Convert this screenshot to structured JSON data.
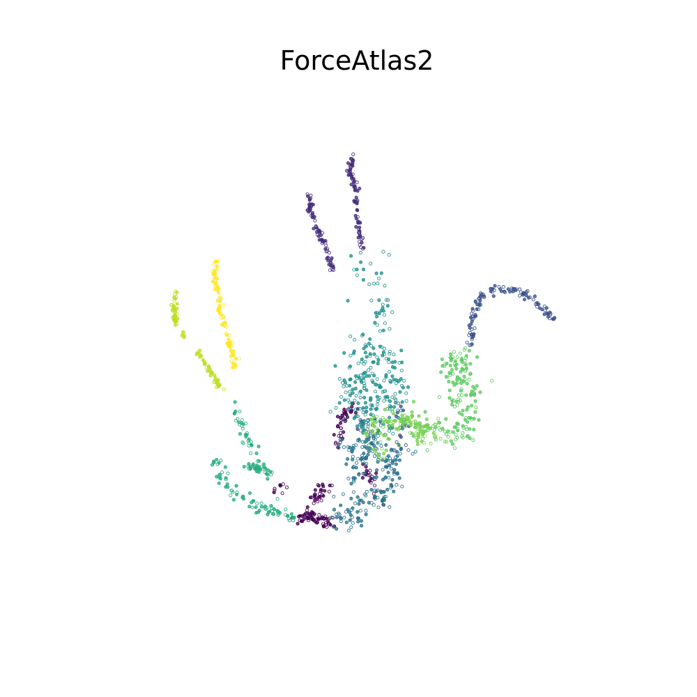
{
  "chart_data": {
    "type": "scatter",
    "title": "ForceAtlas2",
    "xlabel": "",
    "ylabel": "",
    "axes_visible": false,
    "grid": false,
    "legend": "none",
    "xlim": [
      0,
      100
    ],
    "ylim": [
      0,
      100
    ],
    "series": [
      {
        "name": "cluster-0",
        "color": "#440154",
        "jitter": 0.6,
        "segments": [
          {
            "points": [
              [
                39.5,
                16.5
              ],
              [
                41,
                17.5
              ],
              [
                43.5,
                16.5
              ],
              [
                45.5,
                16.5
              ]
            ],
            "n": 60
          },
          {
            "points": [
              [
                41,
                18.5
              ],
              [
                42.5,
                21
              ],
              [
                44,
                22.5
              ]
            ],
            "n": 30
          },
          {
            "points": [
              [
                46.5,
                30
              ],
              [
                47.5,
                36.5
              ],
              [
                48.5,
                36.5
              ],
              [
                49.5,
                38
              ]
            ],
            "n": 40
          },
          {
            "points": [
              [
                51,
                27
              ],
              [
                52.5,
                24.5
              ],
              [
                53.5,
                22.5
              ]
            ],
            "n": 20
          },
          {
            "points": [
              [
                35,
                23
              ],
              [
                35.5,
                22.5
              ]
            ],
            "n": 8
          }
        ]
      },
      {
        "name": "cluster-1",
        "color": "#472f7d",
        "jitter": 0.3,
        "segments": [
          {
            "points": [
              [
                41.5,
                77.5
              ],
              [
                41,
                75.5
              ],
              [
                42,
                72
              ],
              [
                43.5,
                69
              ],
              [
                44.5,
                66
              ],
              [
                45.5,
                63
              ]
            ],
            "n": 70
          },
          {
            "points": [
              [
                49.5,
                84.5
              ],
              [
                48.5,
                81
              ],
              [
                49.5,
                79
              ],
              [
                50,
                73
              ],
              [
                50.5,
                70
              ],
              [
                51,
                67
              ]
            ],
            "n": 80
          }
        ]
      },
      {
        "name": "cluster-2",
        "color": "#3b518b",
        "jitter": 0.4,
        "segments": [
          {
            "points": [
              [
                71,
                49
              ],
              [
                71.5,
                54
              ],
              [
                72.5,
                57
              ],
              [
                74,
                59
              ],
              [
                77,
                59.5
              ],
              [
                80,
                59
              ],
              [
                83,
                57
              ],
              [
                86.5,
                54
              ]
            ],
            "n": 110
          },
          {
            "points": [
              [
                57.5,
                38
              ],
              [
                58.5,
                34
              ],
              [
                57.5,
                29
              ],
              [
                56,
                25
              ]
            ],
            "n": 25
          },
          {
            "points": [
              [
                50,
                36
              ],
              [
                51.5,
                33
              ],
              [
                53,
                31
              ]
            ],
            "n": 15
          }
        ]
      },
      {
        "name": "cluster-3",
        "color": "#2c728e",
        "jitter": 1.4,
        "segments": [
          {
            "points": [
              [
                46.5,
                16.5
              ],
              [
                49,
                17.5
              ],
              [
                52,
                19.5
              ],
              [
                54.5,
                22
              ],
              [
                57,
                25.5
              ],
              [
                58,
                29
              ]
            ],
            "n": 110
          },
          {
            "points": [
              [
                47,
                31
              ],
              [
                50,
                30
              ],
              [
                53,
                29
              ],
              [
                56,
                28
              ]
            ],
            "n": 50
          },
          {
            "points": [
              [
                48,
                20
              ],
              [
                50,
                25
              ],
              [
                52,
                30
              ],
              [
                53,
                35
              ]
            ],
            "n": 50
          }
        ]
      },
      {
        "name": "cluster-4",
        "color": "#21918c",
        "jitter": 1.8,
        "segments": [
          {
            "points": [
              [
                49,
                45
              ],
              [
                51,
                48
              ],
              [
                53.5,
                48
              ],
              [
                56,
                47.5
              ],
              [
                57,
                44
              ],
              [
                56.5,
                40
              ],
              [
                55,
                36
              ]
            ],
            "n": 100
          },
          {
            "points": [
              [
                49,
                44
              ],
              [
                49.5,
                40
              ],
              [
                50,
                36
              ],
              [
                51,
                32
              ]
            ],
            "n": 60
          },
          {
            "points": [
              [
                52,
                44
              ],
              [
                53,
                40
              ],
              [
                54,
                36
              ],
              [
                55,
                32
              ]
            ],
            "n": 60
          },
          {
            "points": [
              [
                51.5,
                65
              ],
              [
                52,
                62
              ],
              [
                53,
                58
              ],
              [
                54,
                55
              ],
              [
                55,
                51.5
              ]
            ],
            "n": 40
          }
        ]
      },
      {
        "name": "cluster-5",
        "color": "#28ae80",
        "jitter": 0.6,
        "segments": [
          {
            "points": [
              [
                24,
                28
              ],
              [
                25,
                24.5
              ],
              [
                27,
                22
              ],
              [
                30,
                19.5
              ],
              [
                33.5,
                18.5
              ],
              [
                36.5,
                18
              ]
            ],
            "n": 70
          },
          {
            "points": [
              [
                30,
                26.5
              ],
              [
                32,
                26
              ],
              [
                34,
                25
              ]
            ],
            "n": 35
          },
          {
            "points": [
              [
                27.5,
                38
              ],
              [
                29,
                33
              ],
              [
                31,
                29
              ],
              [
                32,
                27
              ]
            ],
            "n": 35
          },
          {
            "points": [
              [
                36.5,
                17.5
              ],
              [
                38.5,
                17
              ]
            ],
            "n": 10
          }
        ]
      },
      {
        "name": "cluster-6",
        "color": "#5ec962",
        "jitter": 1.3,
        "segments": [
          {
            "points": [
              [
                67,
                43
              ],
              [
                68,
                46.5
              ],
              [
                69.5,
                44
              ],
              [
                70.5,
                40.5
              ],
              [
                70,
                36
              ],
              [
                69.5,
                31
              ]
            ],
            "n": 110
          },
          {
            "points": [
              [
                60,
                34
              ],
              [
                63,
                33.5
              ],
              [
                66,
                33
              ],
              [
                68.5,
                31.5
              ]
            ],
            "n": 40
          },
          {
            "points": [
              [
                67.5,
                41
              ],
              [
                68.5,
                39
              ]
            ],
            "n": 15
          }
        ]
      },
      {
        "name": "cluster-7",
        "color": "#7ad151",
        "jitter": 1.2,
        "segments": [
          {
            "points": [
              [
                57.5,
                36
              ],
              [
                59.5,
                34
              ],
              [
                61.5,
                33
              ],
              [
                63.5,
                33.5
              ],
              [
                65,
                33
              ]
            ],
            "n": 80
          },
          {
            "points": [
              [
                52,
                32
              ],
              [
                54,
                34
              ],
              [
                55.5,
                36
              ]
            ],
            "n": 30
          },
          {
            "points": [
              [
                54,
                28
              ],
              [
                55,
                31
              ],
              [
                56.5,
                33.5
              ]
            ],
            "n": 20
          }
        ]
      },
      {
        "name": "cluster-8",
        "color": "#bddf26",
        "jitter": 0.3,
        "segments": [
          {
            "points": [
              [
                16.5,
                59
              ],
              [
                16,
                57
              ],
              [
                16.5,
                54
              ],
              [
                16.5,
                53
              ]
            ],
            "n": 45
          },
          {
            "points": [
              [
                20.5,
                47.5
              ],
              [
                22,
                45.5
              ],
              [
                23.5,
                43
              ],
              [
                25,
                40.5
              ]
            ],
            "n": 45
          },
          {
            "points": [
              [
                17.5,
                51.5
              ],
              [
                18,
                50.5
              ]
            ],
            "n": 6
          }
        ]
      },
      {
        "name": "cluster-9",
        "color": "#fde725",
        "jitter": 0.3,
        "segments": [
          {
            "points": [
              [
                24,
                64.5
              ],
              [
                23.5,
                62
              ],
              [
                24,
                59
              ],
              [
                24.5,
                56
              ],
              [
                25.5,
                52.5
              ],
              [
                26.5,
                49
              ],
              [
                27.5,
                45
              ]
            ],
            "n": 95
          }
        ]
      }
    ]
  }
}
